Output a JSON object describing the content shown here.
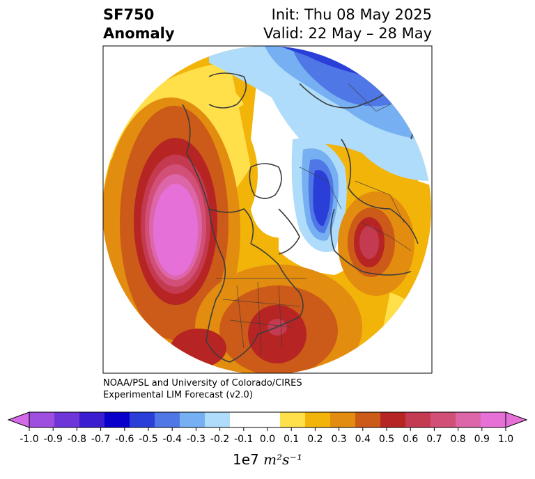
{
  "title": {
    "variable": "SF750",
    "field": "Anomaly",
    "init": "Init: Thu 08 May 2025",
    "valid": "Valid: 22 May – 28 May"
  },
  "credit": {
    "line1": "NOAA/PSL and University of Colorado/CIRES",
    "line2": "Experimental LIM Forecast (v2.0)"
  },
  "colorbar": {
    "unit_prefix": "1e7",
    "unit_text": "m²s⁻¹",
    "ticks": [
      "-1.0",
      "-0.9",
      "-0.8",
      "-0.7",
      "-0.6",
      "-0.5",
      "-0.4",
      "-0.3",
      "-0.2",
      "-0.1",
      "0.0",
      "0.1",
      "0.2",
      "0.3",
      "0.4",
      "0.5",
      "0.6",
      "0.7",
      "0.8",
      "0.9",
      "1.0"
    ],
    "colors": [
      "#9e4fe0",
      "#6e36d8",
      "#3c1ed0",
      "#0a00cc",
      "#2a3fd8",
      "#4f77e6",
      "#76b0f2",
      "#aedcfa",
      "#ffffff",
      "#ffffff",
      "#ffe04a",
      "#f2b408",
      "#e28c10",
      "#cc5a18",
      "#b62424",
      "#c43a50",
      "#d24f78",
      "#dc66a8",
      "#e671d6"
    ],
    "extend_low_color": "#d46ae8",
    "extend_high_color": "#e571d8"
  },
  "map": {
    "projection": "North Polar Stereographic",
    "features": [
      {
        "name": "western North America high",
        "sign": "positive",
        "peak": ">1.0"
      },
      {
        "name": "southeastern US high",
        "sign": "positive",
        "peak": "0.6"
      },
      {
        "name": "eastern Europe high",
        "sign": "positive",
        "peak": "0.6"
      },
      {
        "name": "Scandinavia / Arctic low",
        "sign": "negative",
        "peak": "-0.5"
      },
      {
        "name": "Siberia low",
        "sign": "negative",
        "peak": "-0.6"
      }
    ]
  }
}
